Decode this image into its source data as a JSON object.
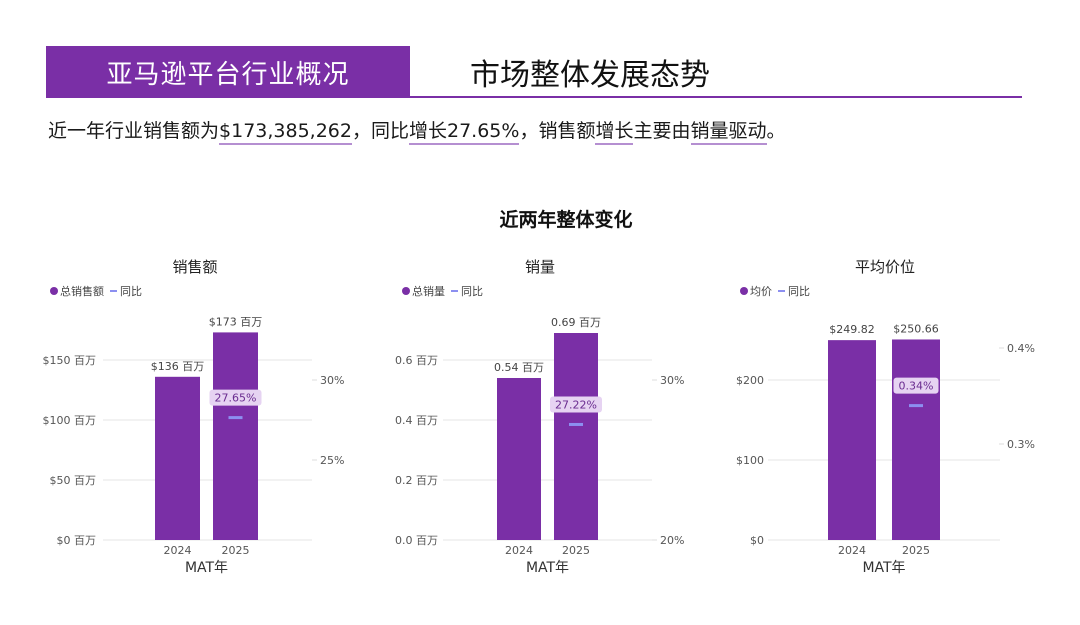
{
  "header": {
    "section_tab": "亚马逊平台行业概况",
    "page_title": "市场整体发展态势"
  },
  "summary": {
    "prefix": "近一年行业销售额为",
    "sales_value": "$173,385,262",
    "mid1": "，同比",
    "growth_text": "增长27.65%",
    "mid2": "，销售额",
    "growth_word": "增长",
    "mid3": "主要由",
    "driver": "销量驱动",
    "suffix": "。"
  },
  "charts_section_title": "近两年整体变化",
  "colors": {
    "bar": "#7a2fa6",
    "yoy": "#8c8ff0",
    "header": "#7a2fa6"
  },
  "chart_data": [
    {
      "type": "bar",
      "title": "销售额",
      "legend": [
        "总销售额",
        "同比"
      ],
      "xlabel": "MAT年",
      "categories": [
        "2024",
        "2025"
      ],
      "values": [
        136,
        173
      ],
      "value_labels": [
        "$136 百万",
        "$173 百万"
      ],
      "ylim": [
        0,
        200
      ],
      "yticks": [
        0,
        50,
        100,
        150
      ],
      "ytick_labels": [
        "$0 百万",
        "$50 百万",
        "$100 百万",
        "$150 百万"
      ],
      "yoy": {
        "value": 27.65,
        "label": "27.65%",
        "ylim": [
          20,
          35
        ],
        "ticks": [
          25,
          30
        ],
        "tick_labels": [
          "25%",
          "30%"
        ]
      }
    },
    {
      "type": "bar",
      "title": "销量",
      "legend": [
        "总销量",
        "同比"
      ],
      "xlabel": "MAT年",
      "categories": [
        "2024",
        "2025"
      ],
      "values": [
        0.54,
        0.69
      ],
      "value_labels": [
        "0.54 百万",
        "0.69 百万"
      ],
      "ylim": [
        0,
        0.8
      ],
      "yticks": [
        0,
        0.2,
        0.4,
        0.6
      ],
      "ytick_labels": [
        "0.0 百万",
        "0.2 百万",
        "0.4 百万",
        "0.6 百万"
      ],
      "yoy": {
        "value": 27.22,
        "label": "27.22%",
        "ylim": [
          20,
          35
        ],
        "ticks": [
          20,
          30
        ],
        "tick_labels": [
          "20%",
          "30%"
        ]
      }
    },
    {
      "type": "bar",
      "title": "平均价位",
      "legend": [
        "均价",
        "同比"
      ],
      "xlabel": "MAT年",
      "categories": [
        "2024",
        "2025"
      ],
      "values": [
        249.82,
        250.66
      ],
      "value_labels": [
        "$249.82",
        "$250.66"
      ],
      "ylim": [
        0,
        300
      ],
      "yticks": [
        0,
        100,
        200
      ],
      "ytick_labels": [
        "$0",
        "$100",
        "$200"
      ],
      "yoy": {
        "value": 0.34,
        "label": "0.34%",
        "ylim": [
          0.2,
          0.45
        ],
        "ticks": [
          0.3,
          0.4
        ],
        "tick_labels": [
          "0.3%",
          "0.4%"
        ]
      }
    }
  ]
}
